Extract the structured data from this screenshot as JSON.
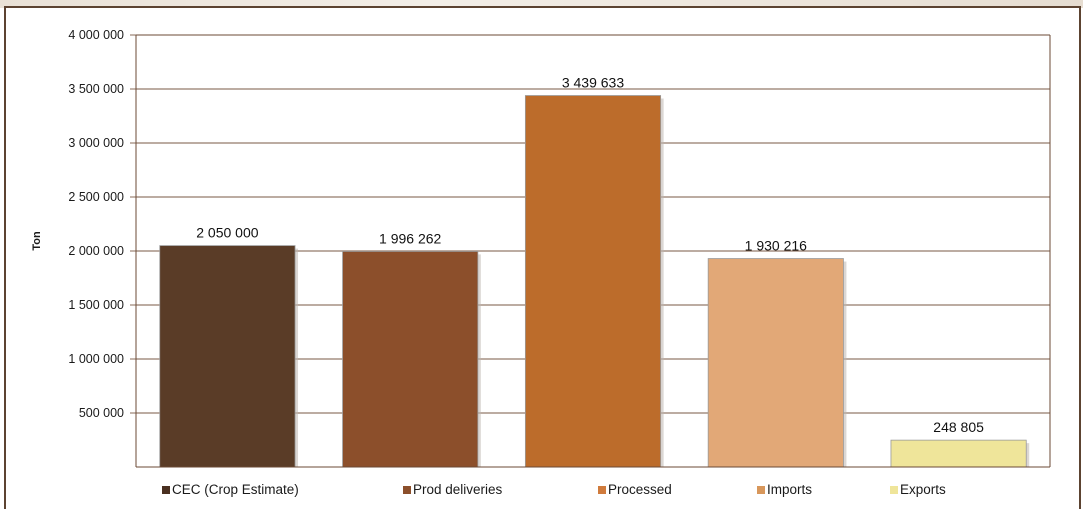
{
  "chart_data": {
    "type": "bar",
    "title": "",
    "xlabel": "",
    "ylabel": "Ton",
    "ylim": [
      0,
      4000000
    ],
    "yticks": [
      500000,
      1000000,
      1500000,
      2000000,
      2500000,
      3000000,
      3500000,
      4000000
    ],
    "ytick_labels": [
      "500 000",
      "1 000 000",
      "1 500 000",
      "2 000 000",
      "2 500 000",
      "3 000 000",
      "3 500 000",
      "4 000 000"
    ],
    "grid": true,
    "legend_position": "bottom",
    "categories": [
      "CEC (Crop Estimate)",
      "Prod deliveries",
      "Processed",
      "Imports",
      "Exports"
    ],
    "values": [
      2050000,
      1996262,
      3439633,
      1930216,
      248805
    ],
    "value_labels": [
      "2 050 000",
      "1 996 262",
      "3 439 633",
      "1 930 216",
      "248 805"
    ],
    "colors": [
      "#5a3c27",
      "#8c4f2b",
      "#bc6c2b",
      "#e2a877",
      "#efe59a"
    ],
    "legend_colors": [
      "#4a3020",
      "#8c4f2b",
      "#d07b3c",
      "#d8975b",
      "#efe59a"
    ]
  }
}
